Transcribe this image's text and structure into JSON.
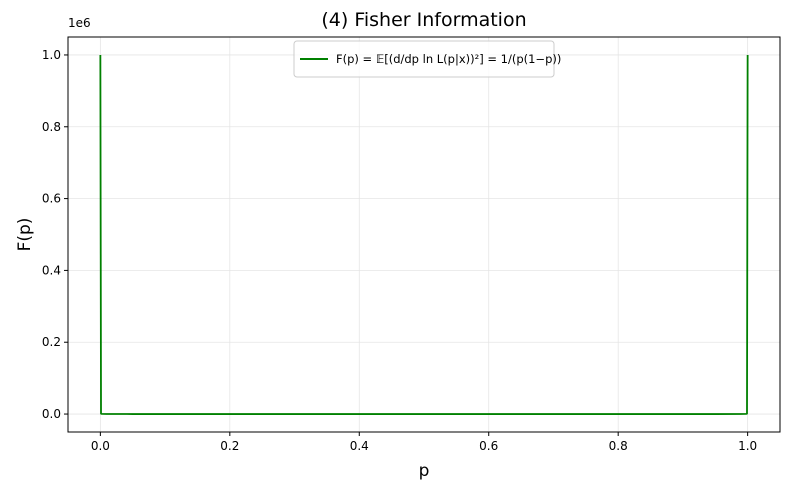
{
  "chart_data": {
    "type": "line",
    "title": "(4) Fisher Information",
    "xlabel": "p",
    "ylabel": "F(p)",
    "y_offset_label": "1e6",
    "xlim": [
      -0.05,
      1.05
    ],
    "ylim": [
      -0.05,
      1.05
    ],
    "xticks": [
      0.0,
      0.2,
      0.4,
      0.6,
      0.8,
      1.0
    ],
    "xtick_labels": [
      "0.0",
      "0.2",
      "0.4",
      "0.6",
      "0.8",
      "1.0"
    ],
    "yticks": [
      0.0,
      0.2,
      0.4,
      0.6,
      0.8,
      1.0
    ],
    "ytick_labels": [
      "0.0",
      "0.2",
      "0.4",
      "0.6",
      "0.8",
      "1.0"
    ],
    "grid": true,
    "legend_position": "top-center",
    "series": [
      {
        "name": "F(p) = 𝔼[(d/dp ln L(p|x))²] = 1/(p(1−p))",
        "color": "#008000",
        "x": [
          1e-06,
          0.001,
          0.002,
          0.01,
          0.05,
          0.1,
          0.2,
          0.3,
          0.4,
          0.5,
          0.6,
          0.7,
          0.8,
          0.9,
          0.95,
          0.99,
          0.998,
          0.999,
          0.999999
        ],
        "y": [
          1.0,
          0.001001,
          0.000501,
          0.000101,
          2.11e-05,
          1.11e-05,
          6.25e-06,
          4.76e-06,
          4.17e-06,
          4e-06,
          4.17e-06,
          4.76e-06,
          6.25e-06,
          1.11e-05,
          2.11e-05,
          0.000101,
          0.000501,
          0.001001,
          1.0
        ]
      }
    ]
  }
}
